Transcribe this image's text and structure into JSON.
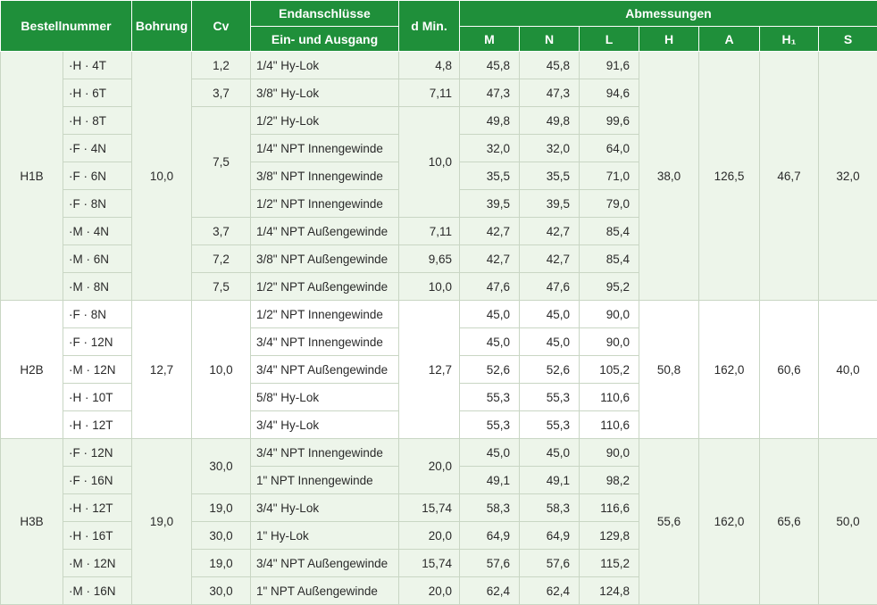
{
  "header": {
    "bestellnummer": "Bestellnummer",
    "bohrung": "Bohrung",
    "cv": "Cv",
    "endanschluesse": "Endanschlüsse",
    "ein_ausgang": "Ein- und Ausgang",
    "dmin": "d Min.",
    "abmessungen": "Abmessungen",
    "m": "M",
    "n": "N",
    "l": "L",
    "h": "H",
    "a": "A",
    "h1": "H₁",
    "s": "S"
  },
  "groups": [
    {
      "series": "H1B",
      "bohrung": "10,0",
      "h": "38,0",
      "a": "126,5",
      "h1": "46,7",
      "s": "32,0",
      "rows": [
        {
          "code": "·H · 4T",
          "cv": "1,2",
          "conn": "1/4\" Hy-Lok",
          "dmin": "4,8",
          "m": "45,8",
          "n": "45,8",
          "l": "91,6"
        },
        {
          "code": "·H · 6T",
          "cv": "3,7",
          "conn": "3/8\" Hy-Lok",
          "dmin": "7,11",
          "m": "47,3",
          "n": "47,3",
          "l": "94,6"
        },
        {
          "code": "·H · 8T",
          "cv": "7,5",
          "conn": "1/2\" Hy-Lok",
          "dmin": "10,0",
          "m": "49,8",
          "n": "49,8",
          "l": "99,6"
        },
        {
          "code": "·F · 4N",
          "conn": "1/4\" NPT Innengewinde",
          "m": "32,0",
          "n": "32,0",
          "l": "64,0"
        },
        {
          "code": "·F · 6N",
          "conn": "3/8\" NPT Innengewinde",
          "m": "35,5",
          "n": "35,5",
          "l": "71,0"
        },
        {
          "code": "·F · 8N",
          "conn": "1/2\" NPT Innengewinde",
          "m": "39,5",
          "n": "39,5",
          "l": "79,0"
        },
        {
          "code": "·M · 4N",
          "cv": "3,7",
          "conn": "1/4\" NPT Außengewinde",
          "dmin": "7,11",
          "m": "42,7",
          "n": "42,7",
          "l": "85,4"
        },
        {
          "code": "·M · 6N",
          "cv": "7,2",
          "conn": "3/8\" NPT Außengewinde",
          "dmin": "9,65",
          "m": "42,7",
          "n": "42,7",
          "l": "85,4"
        },
        {
          "code": "·M · 8N",
          "cv": "7,5",
          "conn": "1/2\" NPT Außengewinde",
          "dmin": "10,0",
          "m": "47,6",
          "n": "47,6",
          "l": "95,2"
        }
      ]
    },
    {
      "series": "H2B",
      "bohrung": "12,7",
      "cv": "10,0",
      "dmin": "12,7",
      "h": "50,8",
      "a": "162,0",
      "h1": "60,6",
      "s": "40,0",
      "rows": [
        {
          "code": "·F · 8N",
          "conn": "1/2\" NPT Innengewinde",
          "m": "45,0",
          "n": "45,0",
          "l": "90,0"
        },
        {
          "code": "·F · 12N",
          "conn": "3/4\" NPT Innengewinde",
          "m": "45,0",
          "n": "45,0",
          "l": "90,0"
        },
        {
          "code": "·M · 12N",
          "conn": "3/4\" NPT Außengewinde",
          "m": "52,6",
          "n": "52,6",
          "l": "105,2"
        },
        {
          "code": "·H · 10T",
          "conn": "5/8\" Hy-Lok",
          "m": "55,3",
          "n": "55,3",
          "l": "110,6"
        },
        {
          "code": "·H · 12T",
          "conn": "3/4\" Hy-Lok",
          "m": "55,3",
          "n": "55,3",
          "l": "110,6"
        }
      ]
    },
    {
      "series": "H3B",
      "bohrung": "19,0",
      "h": "55,6",
      "a": "162,0",
      "h1": "65,6",
      "s": "50,0",
      "rows": [
        {
          "code": "·F · 12N",
          "cv": "30,0",
          "conn": "3/4\" NPT Innengewinde",
          "dmin": "20,0",
          "m": "45,0",
          "n": "45,0",
          "l": "90,0"
        },
        {
          "code": "·F · 16N",
          "conn": "1\" NPT Innengewinde",
          "m": "49,1",
          "n": "49,1",
          "l": "98,2"
        },
        {
          "code": "·H · 12T",
          "cv": "19,0",
          "conn": "3/4\" Hy-Lok",
          "dmin": "15,74",
          "m": "58,3",
          "n": "58,3",
          "l": "116,6"
        },
        {
          "code": "·H · 16T",
          "cv": "30,0",
          "conn": "1\" Hy-Lok",
          "dmin": "20,0",
          "m": "64,9",
          "n": "64,9",
          "l": "129,8"
        },
        {
          "code": "·M · 12N",
          "cv": "19,0",
          "conn": "3/4\" NPT Außengewinde",
          "dmin": "15,74",
          "m": "57,6",
          "n": "57,6",
          "l": "115,2"
        },
        {
          "code": "·M · 16N",
          "cv": "30,0",
          "conn": "1\" NPT Außengewinde",
          "dmin": "20,0",
          "m": "62,4",
          "n": "62,4",
          "l": "124,8"
        }
      ]
    }
  ]
}
